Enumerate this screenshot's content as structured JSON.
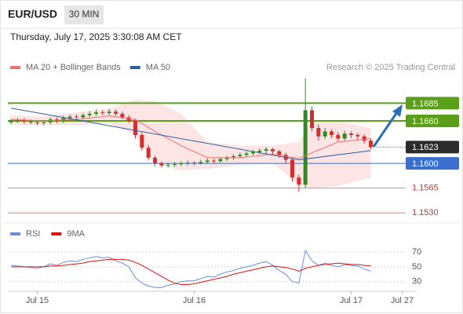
{
  "header": {
    "symbol": "EUR/USD",
    "timeframe": "30 MIN",
    "timestamp": "Thursday, July 17, 2025 3:30:08 AM CET",
    "credit": "Research © 2025 Trading Central"
  },
  "chart_data": [
    {
      "type": "candlestick",
      "up_color": "#2e8b1f",
      "down_color": "#d32f2f",
      "candles": [
        [
          1.1658,
          1.1663,
          1.1655,
          1.166
        ],
        [
          1.166,
          1.1664,
          1.1657,
          1.1661
        ],
        [
          1.1661,
          1.1664,
          1.1656,
          1.1659
        ],
        [
          1.1659,
          1.1662,
          1.1655,
          1.1658
        ],
        [
          1.1658,
          1.1661,
          1.1654,
          1.1657
        ],
        [
          1.1657,
          1.1661,
          1.1654,
          1.1658
        ],
        [
          1.1658,
          1.1665,
          1.1655,
          1.1662
        ],
        [
          1.1662,
          1.1665,
          1.1657,
          1.166
        ],
        [
          1.166,
          1.1667,
          1.1657,
          1.1664
        ],
        [
          1.1664,
          1.1669,
          1.1661,
          1.1666
        ],
        [
          1.1666,
          1.1669,
          1.1662,
          1.1665
        ],
        [
          1.1665,
          1.1671,
          1.1662,
          1.1668
        ],
        [
          1.1668,
          1.1674,
          1.1665,
          1.167
        ],
        [
          1.167,
          1.1676,
          1.1667,
          1.1672
        ],
        [
          1.1672,
          1.1675,
          1.1668,
          1.1671
        ],
        [
          1.1671,
          1.1677,
          1.1668,
          1.1673
        ],
        [
          1.1673,
          1.1676,
          1.1667,
          1.167
        ],
        [
          1.167,
          1.1673,
          1.1662,
          1.1665
        ],
        [
          1.1665,
          1.1668,
          1.1657,
          1.166
        ],
        [
          1.166,
          1.1663,
          1.1635,
          1.164
        ],
        [
          1.164,
          1.1644,
          1.1618,
          1.1622
        ],
        [
          1.1622,
          1.1626,
          1.1604,
          1.1608
        ],
        [
          1.1608,
          1.1611,
          1.1596,
          1.16
        ],
        [
          1.16,
          1.1603,
          1.1594,
          1.1597
        ],
        [
          1.1597,
          1.1601,
          1.1594,
          1.1598
        ],
        [
          1.1598,
          1.1602,
          1.1595,
          1.1599
        ],
        [
          1.1599,
          1.1603,
          1.1596,
          1.16
        ],
        [
          1.16,
          1.1604,
          1.1597,
          1.1601
        ],
        [
          1.1601,
          1.1603,
          1.1597,
          1.16
        ],
        [
          1.16,
          1.1605,
          1.1598,
          1.1602
        ],
        [
          1.1602,
          1.1607,
          1.1599,
          1.1604
        ],
        [
          1.1604,
          1.1606,
          1.16,
          1.1603
        ],
        [
          1.1603,
          1.1609,
          1.1601,
          1.1606
        ],
        [
          1.1606,
          1.1611,
          1.1603,
          1.1608
        ],
        [
          1.1608,
          1.1613,
          1.1605,
          1.161
        ],
        [
          1.161,
          1.1615,
          1.1607,
          1.1612
        ],
        [
          1.1612,
          1.1617,
          1.1609,
          1.1614
        ],
        [
          1.1614,
          1.1619,
          1.1611,
          1.1616
        ],
        [
          1.1616,
          1.1621,
          1.1613,
          1.1618
        ],
        [
          1.1618,
          1.1623,
          1.1614,
          1.162
        ],
        [
          1.162,
          1.1622,
          1.1613,
          1.1617
        ],
        [
          1.1617,
          1.1619,
          1.1608,
          1.1612
        ],
        [
          1.1612,
          1.1615,
          1.16,
          1.1605
        ],
        [
          1.1605,
          1.1608,
          1.1574,
          1.158
        ],
        [
          1.158,
          1.1584,
          1.156,
          1.157
        ],
        [
          1.157,
          1.172,
          1.1565,
          1.1675
        ],
        [
          1.1675,
          1.168,
          1.1645,
          1.165
        ],
        [
          1.165,
          1.1655,
          1.1632,
          1.1638
        ],
        [
          1.1638,
          1.165,
          1.1634,
          1.1645
        ],
        [
          1.1645,
          1.1648,
          1.1636,
          1.164
        ],
        [
          1.164,
          1.1644,
          1.1631,
          1.1635
        ],
        [
          1.1635,
          1.1646,
          1.1632,
          1.1642
        ],
        [
          1.1642,
          1.1645,
          1.1636,
          1.164
        ],
        [
          1.164,
          1.1643,
          1.1634,
          1.1638
        ],
        [
          1.1638,
          1.1641,
          1.1628,
          1.1632
        ],
        [
          1.1632,
          1.1635,
          1.162,
          1.1623
        ]
      ],
      "series": [
        {
          "name": "MA 20 + Bollinger Bands",
          "color": "#f07070",
          "band_color": "#fde0e0",
          "x": [
            0,
            5,
            10,
            15,
            19,
            22,
            26,
            30,
            35,
            40,
            44,
            46,
            50,
            55
          ],
          "values": [
            1.1662,
            1.166,
            1.1662,
            1.1667,
            1.1662,
            1.1645,
            1.1625,
            1.1608,
            1.1608,
            1.1613,
            1.1607,
            1.1615,
            1.163,
            1.1635
          ],
          "upper": [
            1.1668,
            1.1666,
            1.1672,
            1.1677,
            1.169,
            1.1688,
            1.167,
            1.163,
            1.1625,
            1.1625,
            1.163,
            1.166,
            1.166,
            1.165
          ],
          "lower": [
            1.1655,
            1.1654,
            1.1654,
            1.1656,
            1.164,
            1.16,
            1.159,
            1.1592,
            1.1598,
            1.16,
            1.157,
            1.1565,
            1.1568,
            1.158
          ]
        },
        {
          "name": "MA 50",
          "color": "#2d5fa0",
          "x": [
            0,
            44,
            55
          ],
          "values": [
            1.1678,
            1.1605,
            1.1618
          ]
        }
      ],
      "levels": [
        {
          "value": 1.1685,
          "label": "1.1685",
          "color": "#5a9e1a",
          "kind": "box"
        },
        {
          "value": 1.166,
          "label": "1.1660",
          "color": "#5a9e1a",
          "kind": "box"
        },
        {
          "value": 1.1623,
          "label": "1.1623",
          "color": "#2b2b2b",
          "kind": "current"
        },
        {
          "value": 1.16,
          "label": "1.1600",
          "color": "#3a6fd0",
          "kind": "box"
        },
        {
          "value": 1.1565,
          "label": "1.1565",
          "color": "#d32f2f",
          "kind": "text"
        },
        {
          "value": 1.153,
          "label": "1.1530",
          "color": "#d32f2f",
          "kind": "text"
        }
      ],
      "xlim": [
        0,
        62.4
      ],
      "ylim": [
        1.1517,
        1.1722
      ],
      "xticks": [
        {
          "value": 4.5,
          "label": "Jul 15"
        },
        {
          "value": 28.5,
          "label": "Jul 16"
        },
        {
          "value": 52.5,
          "label": "Jul 17"
        },
        {
          "value": 60.3,
          "label": "Jul 27"
        }
      ]
    },
    {
      "type": "line",
      "series": [
        {
          "name": "RSI",
          "color": "#6a8fdc",
          "values": [
            52,
            51,
            50,
            49,
            48,
            50,
            54,
            52,
            56,
            58,
            57,
            60,
            62,
            64,
            62,
            63,
            58,
            55,
            50,
            35,
            28,
            24,
            22,
            22,
            25,
            27,
            30,
            31,
            31,
            34,
            37,
            36,
            40,
            43,
            45,
            48,
            50,
            52,
            55,
            57,
            52,
            45,
            40,
            30,
            28,
            72,
            58,
            52,
            55,
            52,
            50,
            53,
            52,
            51,
            47,
            44
          ]
        },
        {
          "name": "9MA",
          "color": "#e01010",
          "values": [
            50,
            50,
            50,
            50,
            50,
            50,
            51,
            51,
            52,
            53,
            54,
            55,
            57,
            58,
            59,
            60,
            60,
            60,
            59,
            56,
            52,
            47,
            42,
            37,
            32,
            28,
            26,
            26,
            27,
            29,
            31,
            33,
            35,
            37,
            40,
            42,
            44,
            46,
            48,
            50,
            51,
            50,
            49,
            47,
            44,
            48,
            50,
            52,
            53,
            54,
            55,
            54,
            53,
            53,
            52,
            51
          ]
        }
      ],
      "ylim": [
        18,
        87
      ],
      "yticks": [
        70,
        50,
        30
      ],
      "grid": true
    }
  ]
}
